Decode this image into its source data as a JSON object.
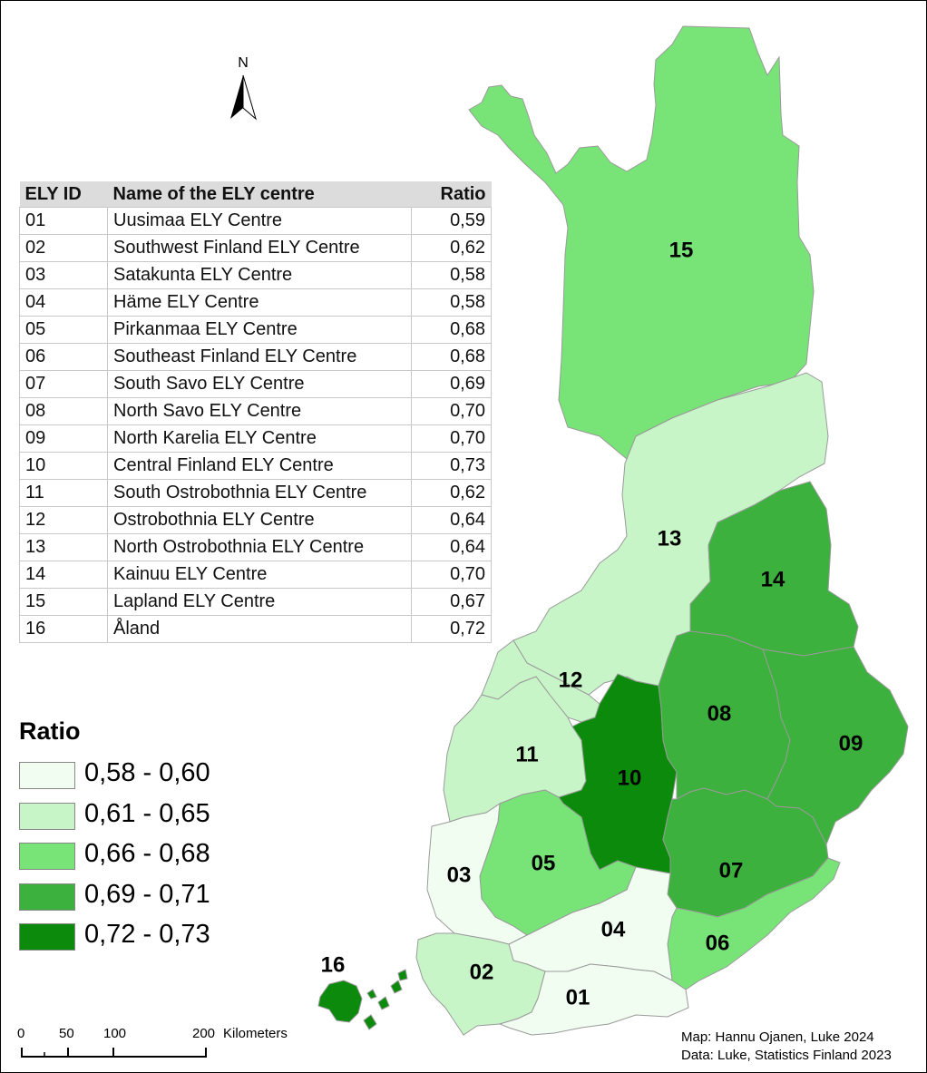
{
  "colors": {
    "class1": "#f2fdf2",
    "class2": "#c8f5c8",
    "class3": "#78e478",
    "class4": "#3db13d",
    "class5": "#0b8a0b"
  },
  "north": {
    "letter": "N"
  },
  "table": {
    "headers": {
      "id": "ELY ID",
      "name": "Name of the ELY centre",
      "ratio": "Ratio"
    },
    "rows": [
      {
        "id": "01",
        "name": "Uusimaa ELY Centre",
        "ratio": "0,59"
      },
      {
        "id": "02",
        "name": "Southwest Finland ELY Centre",
        "ratio": "0,62"
      },
      {
        "id": "03",
        "name": "Satakunta ELY Centre",
        "ratio": "0,58"
      },
      {
        "id": "04",
        "name": "Häme ELY Centre",
        "ratio": "0,58"
      },
      {
        "id": "05",
        "name": "Pirkanmaa ELY Centre",
        "ratio": "0,68"
      },
      {
        "id": "06",
        "name": "Southeast Finland  ELY Centre",
        "ratio": "0,68"
      },
      {
        "id": "07",
        "name": "South Savo ELY Centre",
        "ratio": "0,69"
      },
      {
        "id": "08",
        "name": "North Savo ELY Centre",
        "ratio": "0,70"
      },
      {
        "id": "09",
        "name": "North Karelia ELY Centre",
        "ratio": "0,70"
      },
      {
        "id": "10",
        "name": "Central Finland ELY Centre",
        "ratio": "0,73"
      },
      {
        "id": "11",
        "name": "South Ostrobothnia ELY Centre",
        "ratio": "0,62"
      },
      {
        "id": "12",
        "name": "Ostrobothnia ELY Centre",
        "ratio": "0,64"
      },
      {
        "id": "13",
        "name": "North Ostrobothnia ELY Centre",
        "ratio": "0,64"
      },
      {
        "id": "14",
        "name": "Kainuu ELY Centre",
        "ratio": "0,70"
      },
      {
        "id": "15",
        "name": "Lapland ELY Centre",
        "ratio": "0,67"
      },
      {
        "id": "16",
        "name": "Åland",
        "ratio": "0,72"
      }
    ]
  },
  "legend": {
    "title": "Ratio",
    "items": [
      {
        "label": "0,58 - 0,60",
        "color": "#f2fdf2"
      },
      {
        "label": "0,61 - 0,65",
        "color": "#c8f5c8"
      },
      {
        "label": "0,66 - 0,68",
        "color": "#78e478"
      },
      {
        "label": "0,69 - 0,71",
        "color": "#3db13d"
      },
      {
        "label": "0,72 - 0,73",
        "color": "#0b8a0b"
      }
    ]
  },
  "regions": [
    {
      "id": "01",
      "label": "01",
      "class": 1
    },
    {
      "id": "02",
      "label": "02",
      "class": 2
    },
    {
      "id": "03",
      "label": "03",
      "class": 1
    },
    {
      "id": "04",
      "label": "04",
      "class": 1
    },
    {
      "id": "05",
      "label": "05",
      "class": 3
    },
    {
      "id": "06",
      "label": "06",
      "class": 3
    },
    {
      "id": "07",
      "label": "07",
      "class": 4
    },
    {
      "id": "08",
      "label": "08",
      "class": 4
    },
    {
      "id": "09",
      "label": "09",
      "class": 4
    },
    {
      "id": "10",
      "label": "10",
      "class": 5
    },
    {
      "id": "11",
      "label": "11",
      "class": 2
    },
    {
      "id": "12",
      "label": "12",
      "class": 2
    },
    {
      "id": "13",
      "label": "13",
      "class": 2
    },
    {
      "id": "14",
      "label": "14",
      "class": 4
    },
    {
      "id": "15",
      "label": "15",
      "class": 3
    },
    {
      "id": "16",
      "label": "16",
      "class": 5
    }
  ],
  "scalebar": {
    "ticks": [
      "0",
      "50",
      "100",
      "200"
    ],
    "unit": "Kilometers"
  },
  "credits": {
    "line1": "Map: Hannu Ojanen, Luke 2024",
    "line2": "Data: Luke, Statistics Finland 2023"
  }
}
